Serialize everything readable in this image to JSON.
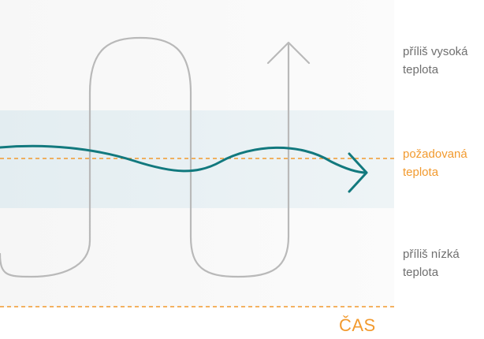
{
  "colors": {
    "accent": "#f29a2e",
    "teal": "#12797e",
    "gray_line": "#b9b9b9",
    "band_fill": "#e7f0f3",
    "zone_fill": "#f6f6f6",
    "label_gray": "#6f6f6f"
  },
  "labels": {
    "too_high": [
      "příliš vysoká",
      "teplota"
    ],
    "desired": [
      "požadovaná",
      "teplota"
    ],
    "too_low": [
      "příliš nízká",
      "teplota"
    ]
  },
  "axis": {
    "time_label": "ČAS"
  }
}
